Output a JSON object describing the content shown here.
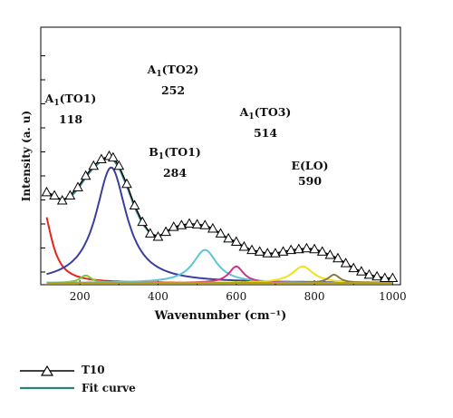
{
  "chart_data": {
    "type": "line",
    "title": "",
    "xlabel": "Wavenumber (cm⁻¹)",
    "ylabel": "Intensity (a. u)",
    "xlim": [
      100,
      1020
    ],
    "xticks": [
      200,
      400,
      600,
      800,
      1000
    ],
    "y_tick_labels": false,
    "series": [
      {
        "name": "T10",
        "style": "line-with-open-triangles",
        "color": "#000000",
        "x": [
          115,
          135,
          155,
          175,
          195,
          215,
          235,
          255,
          275,
          285,
          300,
          320,
          340,
          360,
          380,
          400,
          420,
          440,
          460,
          480,
          500,
          520,
          540,
          560,
          580,
          600,
          620,
          640,
          660,
          680,
          700,
          720,
          740,
          760,
          780,
          800,
          820,
          840,
          860,
          880,
          900,
          920,
          940,
          960,
          980,
          1000
        ],
        "y": [
          0.55,
          0.53,
          0.5,
          0.53,
          0.58,
          0.65,
          0.71,
          0.75,
          0.77,
          0.76,
          0.71,
          0.6,
          0.47,
          0.37,
          0.3,
          0.28,
          0.31,
          0.34,
          0.35,
          0.36,
          0.355,
          0.35,
          0.33,
          0.3,
          0.27,
          0.25,
          0.22,
          0.2,
          0.19,
          0.18,
          0.18,
          0.19,
          0.2,
          0.205,
          0.21,
          0.205,
          0.19,
          0.17,
          0.15,
          0.12,
          0.09,
          0.07,
          0.05,
          0.04,
          0.03,
          0.03
        ]
      },
      {
        "name": "Fit curve",
        "color": "#2a7f7f",
        "x": [
          115,
          135,
          155,
          175,
          195,
          215,
          235,
          255,
          275,
          285,
          300,
          320,
          340,
          360,
          380,
          400,
          420,
          440,
          460,
          480,
          500,
          520,
          540,
          560,
          580,
          600,
          620,
          640,
          660,
          680,
          700,
          720,
          740,
          760,
          780,
          800,
          820,
          840,
          860,
          880,
          900,
          920,
          940,
          960,
          980,
          1000
        ],
        "y": [
          0.54,
          0.52,
          0.5,
          0.52,
          0.57,
          0.64,
          0.7,
          0.74,
          0.76,
          0.75,
          0.7,
          0.59,
          0.46,
          0.36,
          0.3,
          0.28,
          0.305,
          0.335,
          0.345,
          0.35,
          0.35,
          0.345,
          0.325,
          0.295,
          0.265,
          0.245,
          0.215,
          0.195,
          0.185,
          0.178,
          0.178,
          0.186,
          0.196,
          0.202,
          0.206,
          0.2,
          0.186,
          0.166,
          0.146,
          0.116,
          0.087,
          0.066,
          0.047,
          0.036,
          0.027,
          0.026
        ]
      }
    ],
    "components": [
      {
        "color": "#e8231c",
        "center": 105,
        "amplitude": 0.45,
        "width": 55
      },
      {
        "color": "#7ec63f",
        "center": 215,
        "amplitude": 0.045,
        "width": 35
      },
      {
        "color": "#3a3f9f",
        "center": 280,
        "amplitude": 0.7,
        "width": 95
      },
      {
        "color": "#5fc4d4",
        "center": 520,
        "amplitude": 0.2,
        "width": 75
      },
      {
        "color": "#c9358f",
        "center": 600,
        "amplitude": 0.1,
        "width": 45
      },
      {
        "color": "#f2e21b",
        "center": 770,
        "amplitude": 0.1,
        "width": 65
      },
      {
        "color": "#8a7a3a",
        "center": 850,
        "amplitude": 0.05,
        "width": 35
      }
    ],
    "annotations": [
      {
        "mode": "A",
        "sub": "1",
        "assign": "(TO1)",
        "value": "118"
      },
      {
        "mode": "A",
        "sub": "1",
        "assign": "(TO2)",
        "value": "252"
      },
      {
        "mode": "B",
        "sub": "1",
        "assign": "(TO1)",
        "value": "284"
      },
      {
        "mode": "A",
        "sub": "1",
        "assign": "(TO3)",
        "value": "514"
      },
      {
        "mode": "E",
        "sub": "",
        "assign": "(LO)",
        "value": "590"
      }
    ],
    "legend": [
      "T10",
      "Fit curve"
    ],
    "legend_position": "bottom-left-outside"
  }
}
